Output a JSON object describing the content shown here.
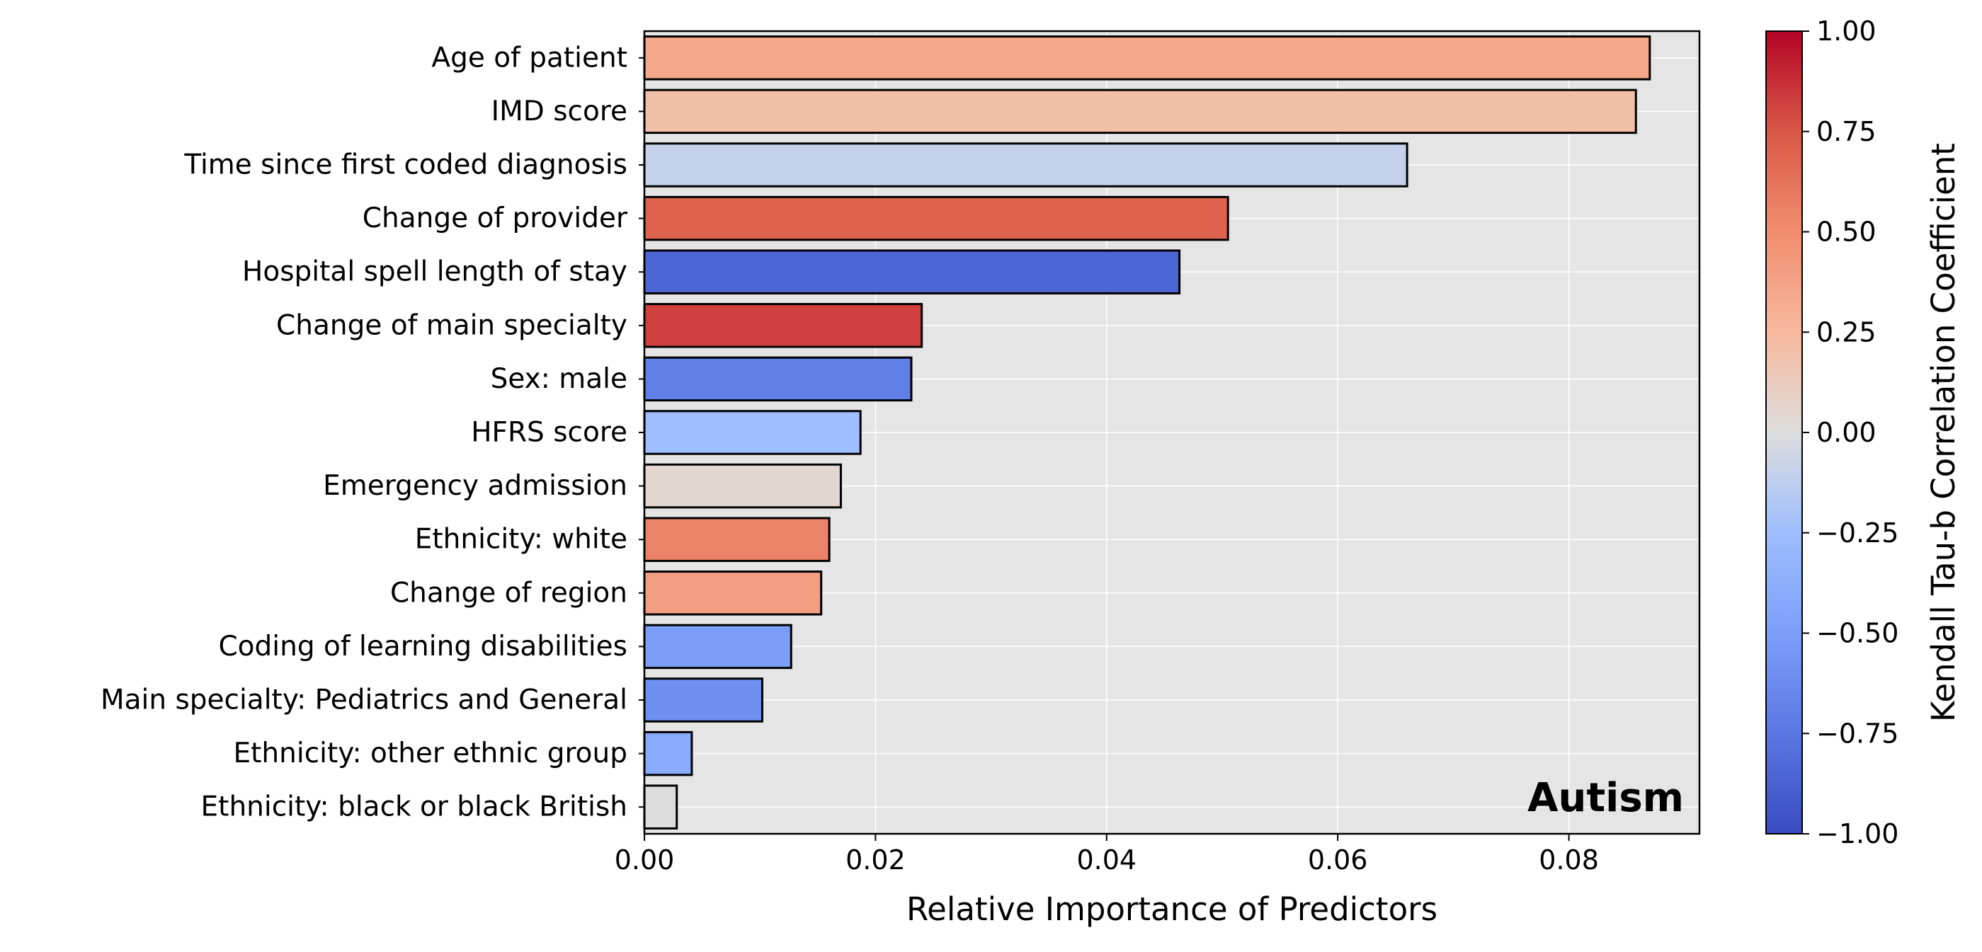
{
  "chart_data": {
    "type": "bar",
    "orientation": "horizontal",
    "panel_label": "Autism",
    "xlabel": "Relative Importance of Predictors",
    "ylabel": "",
    "xlim": [
      0,
      0.0913
    ],
    "x_ticks": [
      0.0,
      0.02,
      0.04,
      0.06,
      0.08
    ],
    "x_tick_labels": [
      "0.00",
      "0.02",
      "0.04",
      "0.06",
      "0.08"
    ],
    "grid": true,
    "bars": [
      {
        "label": "Age of patient",
        "value": 0.087,
        "correlation": 0.35
      },
      {
        "label": "IMD score",
        "value": 0.0858,
        "correlation": 0.2
      },
      {
        "label": "Time since first coded diagnosis",
        "value": 0.066,
        "correlation": -0.1
      },
      {
        "label": "Change of provider",
        "value": 0.0505,
        "correlation": 0.7
      },
      {
        "label": "Hospital spell length of stay",
        "value": 0.0463,
        "correlation": -0.85
      },
      {
        "label": "Change of main specialty",
        "value": 0.024,
        "correlation": 0.82
      },
      {
        "label": "Sex: male",
        "value": 0.0231,
        "correlation": -0.7
      },
      {
        "label": "HFRS score",
        "value": 0.0187,
        "correlation": -0.25
      },
      {
        "label": "Emergency admission",
        "value": 0.017,
        "correlation": 0.05
      },
      {
        "label": "Ethnicity: white",
        "value": 0.016,
        "correlation": 0.55
      },
      {
        "label": "Change of region",
        "value": 0.0153,
        "correlation": 0.4
      },
      {
        "label": "Coding of learning disabilities",
        "value": 0.0127,
        "correlation": -0.5
      },
      {
        "label": "Main specialty: Pediatrics and General",
        "value": 0.0102,
        "correlation": -0.6
      },
      {
        "label": "Ethnicity: other ethnic group",
        "value": 0.0041,
        "correlation": -0.4
      },
      {
        "label": "Ethnicity: black or black British",
        "value": 0.0028,
        "correlation": 0.0
      }
    ],
    "colorbar": {
      "label": "Kendall Tau-b Correlation Coefficient",
      "colormap": "coolwarm",
      "range": [
        -1.0,
        1.0
      ],
      "ticks": [
        1.0,
        0.75,
        0.5,
        0.25,
        0.0,
        -0.25,
        -0.5,
        -0.75,
        -1.0
      ],
      "tick_labels": [
        "1.00",
        "0.75",
        "0.50",
        "0.25",
        "0.00",
        "−0.25",
        "−0.50",
        "−0.75",
        "−1.00"
      ]
    },
    "colors": {
      "plot_background": "#e5e5e5",
      "grid": "#ffffff",
      "bar_edge": "#000000"
    }
  }
}
